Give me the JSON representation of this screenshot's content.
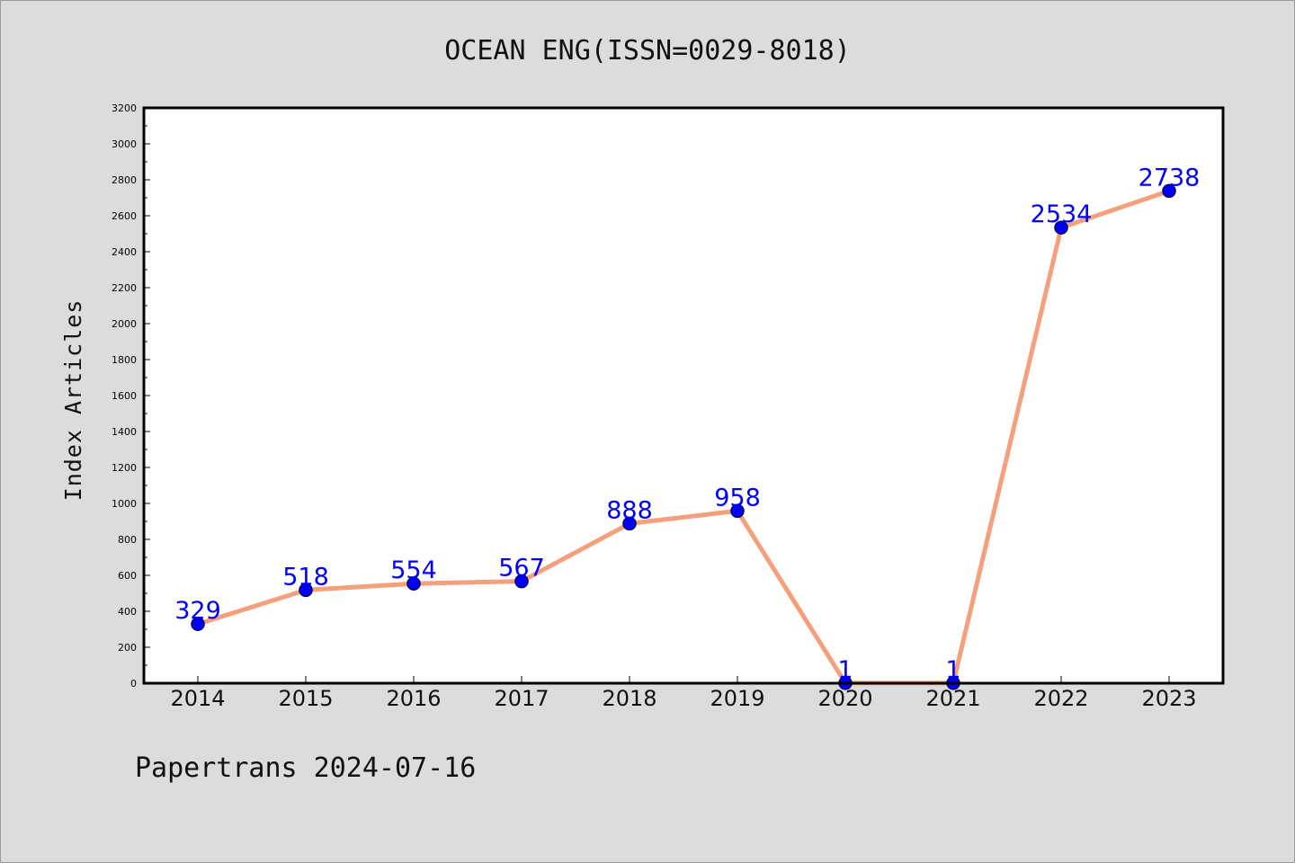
{
  "chart_data": {
    "type": "line",
    "title": "OCEAN ENG(ISSN=0029-8018)",
    "xlabel": "",
    "ylabel": "Index Articles",
    "categories": [
      "2014",
      "2015",
      "2016",
      "2017",
      "2018",
      "2019",
      "2020",
      "2021",
      "2022",
      "2023"
    ],
    "values": [
      329,
      518,
      554,
      567,
      888,
      958,
      1,
      1,
      2534,
      2738
    ],
    "data_labels": [
      "329",
      "518",
      "554",
      "567",
      "888",
      "958",
      "1",
      "1",
      "2534",
      "2738"
    ],
    "ylim": [
      0,
      3200
    ],
    "yticks": [
      "0",
      "200",
      "400",
      "600",
      "800",
      "1000",
      "1200",
      "1400",
      "1600",
      "1800",
      "2000",
      "2200",
      "2400",
      "2600",
      "2800",
      "3000",
      "3200"
    ],
    "grid": false,
    "legend": "none",
    "colors": {
      "line": "#f4a07c",
      "marker": "#0000ff",
      "marker_edge": "#00005a",
      "data_label": "#0000ff",
      "plot_background": "#ffffff",
      "figure_background": "#dcdcdc"
    }
  },
  "footer": {
    "text": "Papertrans 2024-07-16"
  }
}
